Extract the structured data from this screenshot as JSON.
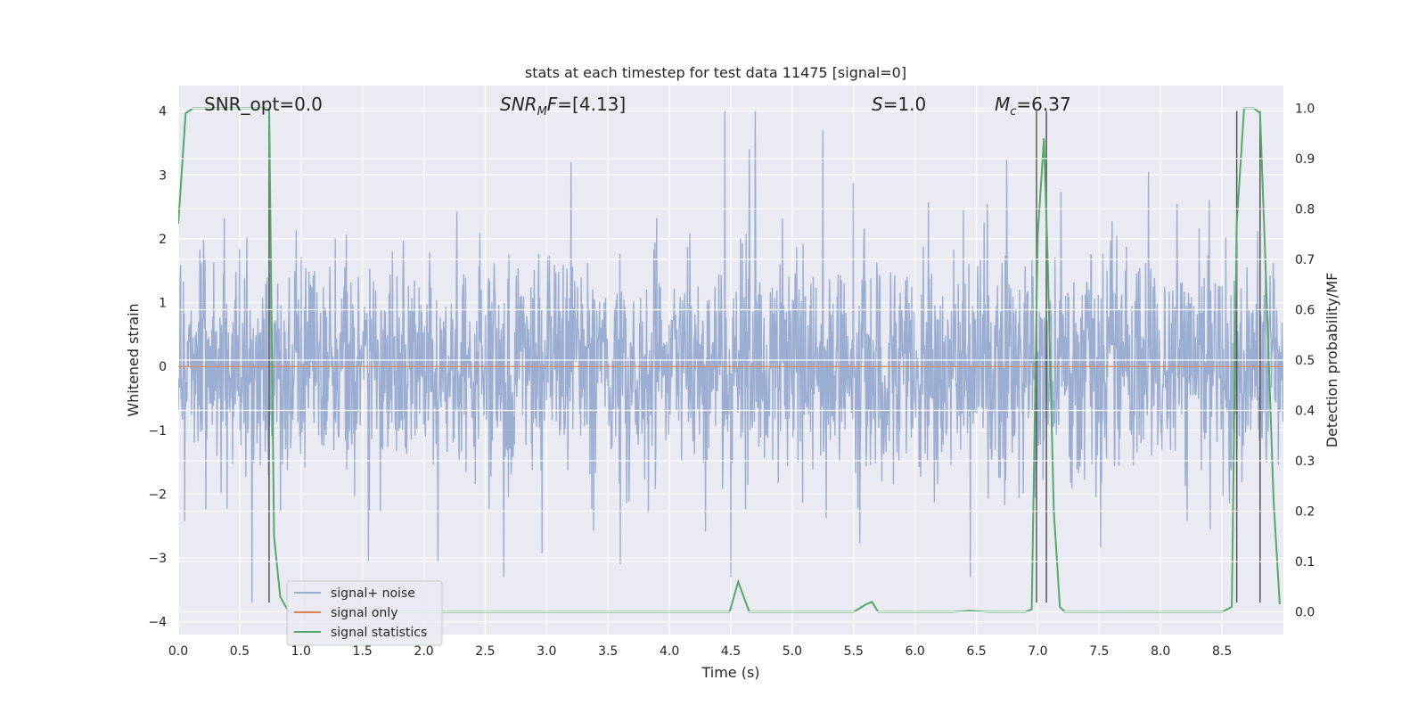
{
  "chart_data": {
    "type": "line",
    "title": "stats at each timestep for test data 11475 [signal=0]",
    "xlabel": "Time (s)",
    "ylabel_left": "Whitened strain",
    "ylabel_right": "Detection probability/MF",
    "xlim": [
      0.0,
      9.0
    ],
    "ylim_left": [
      -4.2,
      4.4
    ],
    "ylim_right": [
      -0.045,
      1.045
    ],
    "x_ticks": [
      "0.0",
      "0.5",
      "1.0",
      "1.5",
      "2.0",
      "2.5",
      "3.0",
      "3.5",
      "4.0",
      "4.5",
      "5.0",
      "5.5",
      "6.0",
      "6.5",
      "7.0",
      "7.5",
      "8.0",
      "8.5"
    ],
    "y_ticks_left": [
      "4",
      "3",
      "2",
      "1",
      "0",
      "−1",
      "−2",
      "−3",
      "−4"
    ],
    "y_ticks_right": [
      "1.0",
      "0.9",
      "0.8",
      "0.7",
      "0.6",
      "0.5",
      "0.4",
      "0.3",
      "0.2",
      "0.1",
      "0.0"
    ],
    "grid": true,
    "legend_position": "lower-left",
    "annotations": [
      {
        "id": "snr-opt",
        "text": "SNR_opt=0.0",
        "x": 0.2
      },
      {
        "id": "snr-mf",
        "text": "=[4.13]",
        "x": 2.6,
        "math_main": "SNR",
        "math_sub": "M",
        "math_after": "F"
      },
      {
        "id": "s-value",
        "text": "=1.0",
        "x": 5.6,
        "math_main": "S"
      },
      {
        "id": "mc-value",
        "text": "=6.37",
        "x": 6.6,
        "math_main": "M",
        "math_sub": "c"
      }
    ],
    "series": [
      {
        "name": "signal+ noise",
        "color": "#4c72b0",
        "axis": "left",
        "noise_sigma": 0.85,
        "range": [
          -3.7,
          4.0
        ],
        "notable_spikes": [
          {
            "x": 0.6,
            "y": -3.7
          },
          {
            "x": 1.55,
            "y": -3.05
          },
          {
            "x": 2.65,
            "y": -3.3
          },
          {
            "x": 3.2,
            "y": 3.2
          },
          {
            "x": 3.6,
            "y": -3.1
          },
          {
            "x": 4.45,
            "y": 4.0
          },
          {
            "x": 4.5,
            "y": -3.3
          },
          {
            "x": 4.65,
            "y": 3.4
          },
          {
            "x": 4.7,
            "y": 4.0
          },
          {
            "x": 5.25,
            "y": 3.7
          },
          {
            "x": 6.45,
            "y": -3.3
          },
          {
            "x": 7.9,
            "y": 3.05
          }
        ]
      },
      {
        "name": "signal only",
        "color": "#dd8452",
        "axis": "left",
        "x": [
          0.0,
          9.0
        ],
        "y": [
          0.0,
          0.0
        ]
      },
      {
        "name": "signal statistics",
        "color": "#55a868",
        "axis": "right",
        "x": [
          0.0,
          0.06,
          0.12,
          0.2,
          0.3,
          0.4,
          0.5,
          0.6,
          0.7,
          0.74,
          0.78,
          0.83,
          0.9,
          1.0,
          2.0,
          3.0,
          4.0,
          4.49,
          4.56,
          4.65,
          5.0,
          5.5,
          5.6,
          5.65,
          5.7,
          5.75,
          6.0,
          6.3,
          6.45,
          6.6,
          6.9,
          6.95,
          7.0,
          7.05,
          7.08,
          7.13,
          7.18,
          7.22,
          7.5,
          8.0,
          8.5,
          8.58,
          8.62,
          8.68,
          8.76,
          8.81,
          8.85,
          8.92,
          8.97
        ],
        "y": [
          0.77,
          0.99,
          1.0,
          1.0,
          1.0,
          1.0,
          1.0,
          1.0,
          1.0,
          1.0,
          0.15,
          0.03,
          0.0,
          0.0,
          0.0,
          0.0,
          0.0,
          0.0,
          0.06,
          0.0,
          0.0,
          0.0,
          0.015,
          0.02,
          0.0,
          0.0,
          0.0,
          0.0,
          0.002,
          0.0,
          0.0,
          0.005,
          0.75,
          0.94,
          0.7,
          0.2,
          0.01,
          0.0,
          0.0,
          0.0,
          0.0,
          0.01,
          0.77,
          1.0,
          1.0,
          0.99,
          0.72,
          0.22,
          0.015
        ]
      }
    ],
    "detection_markers": {
      "color": "#555555",
      "x": [
        0.74,
        6.99,
        7.07,
        8.62,
        8.81
      ],
      "y_range": [
        -3.7,
        4.0
      ]
    }
  }
}
